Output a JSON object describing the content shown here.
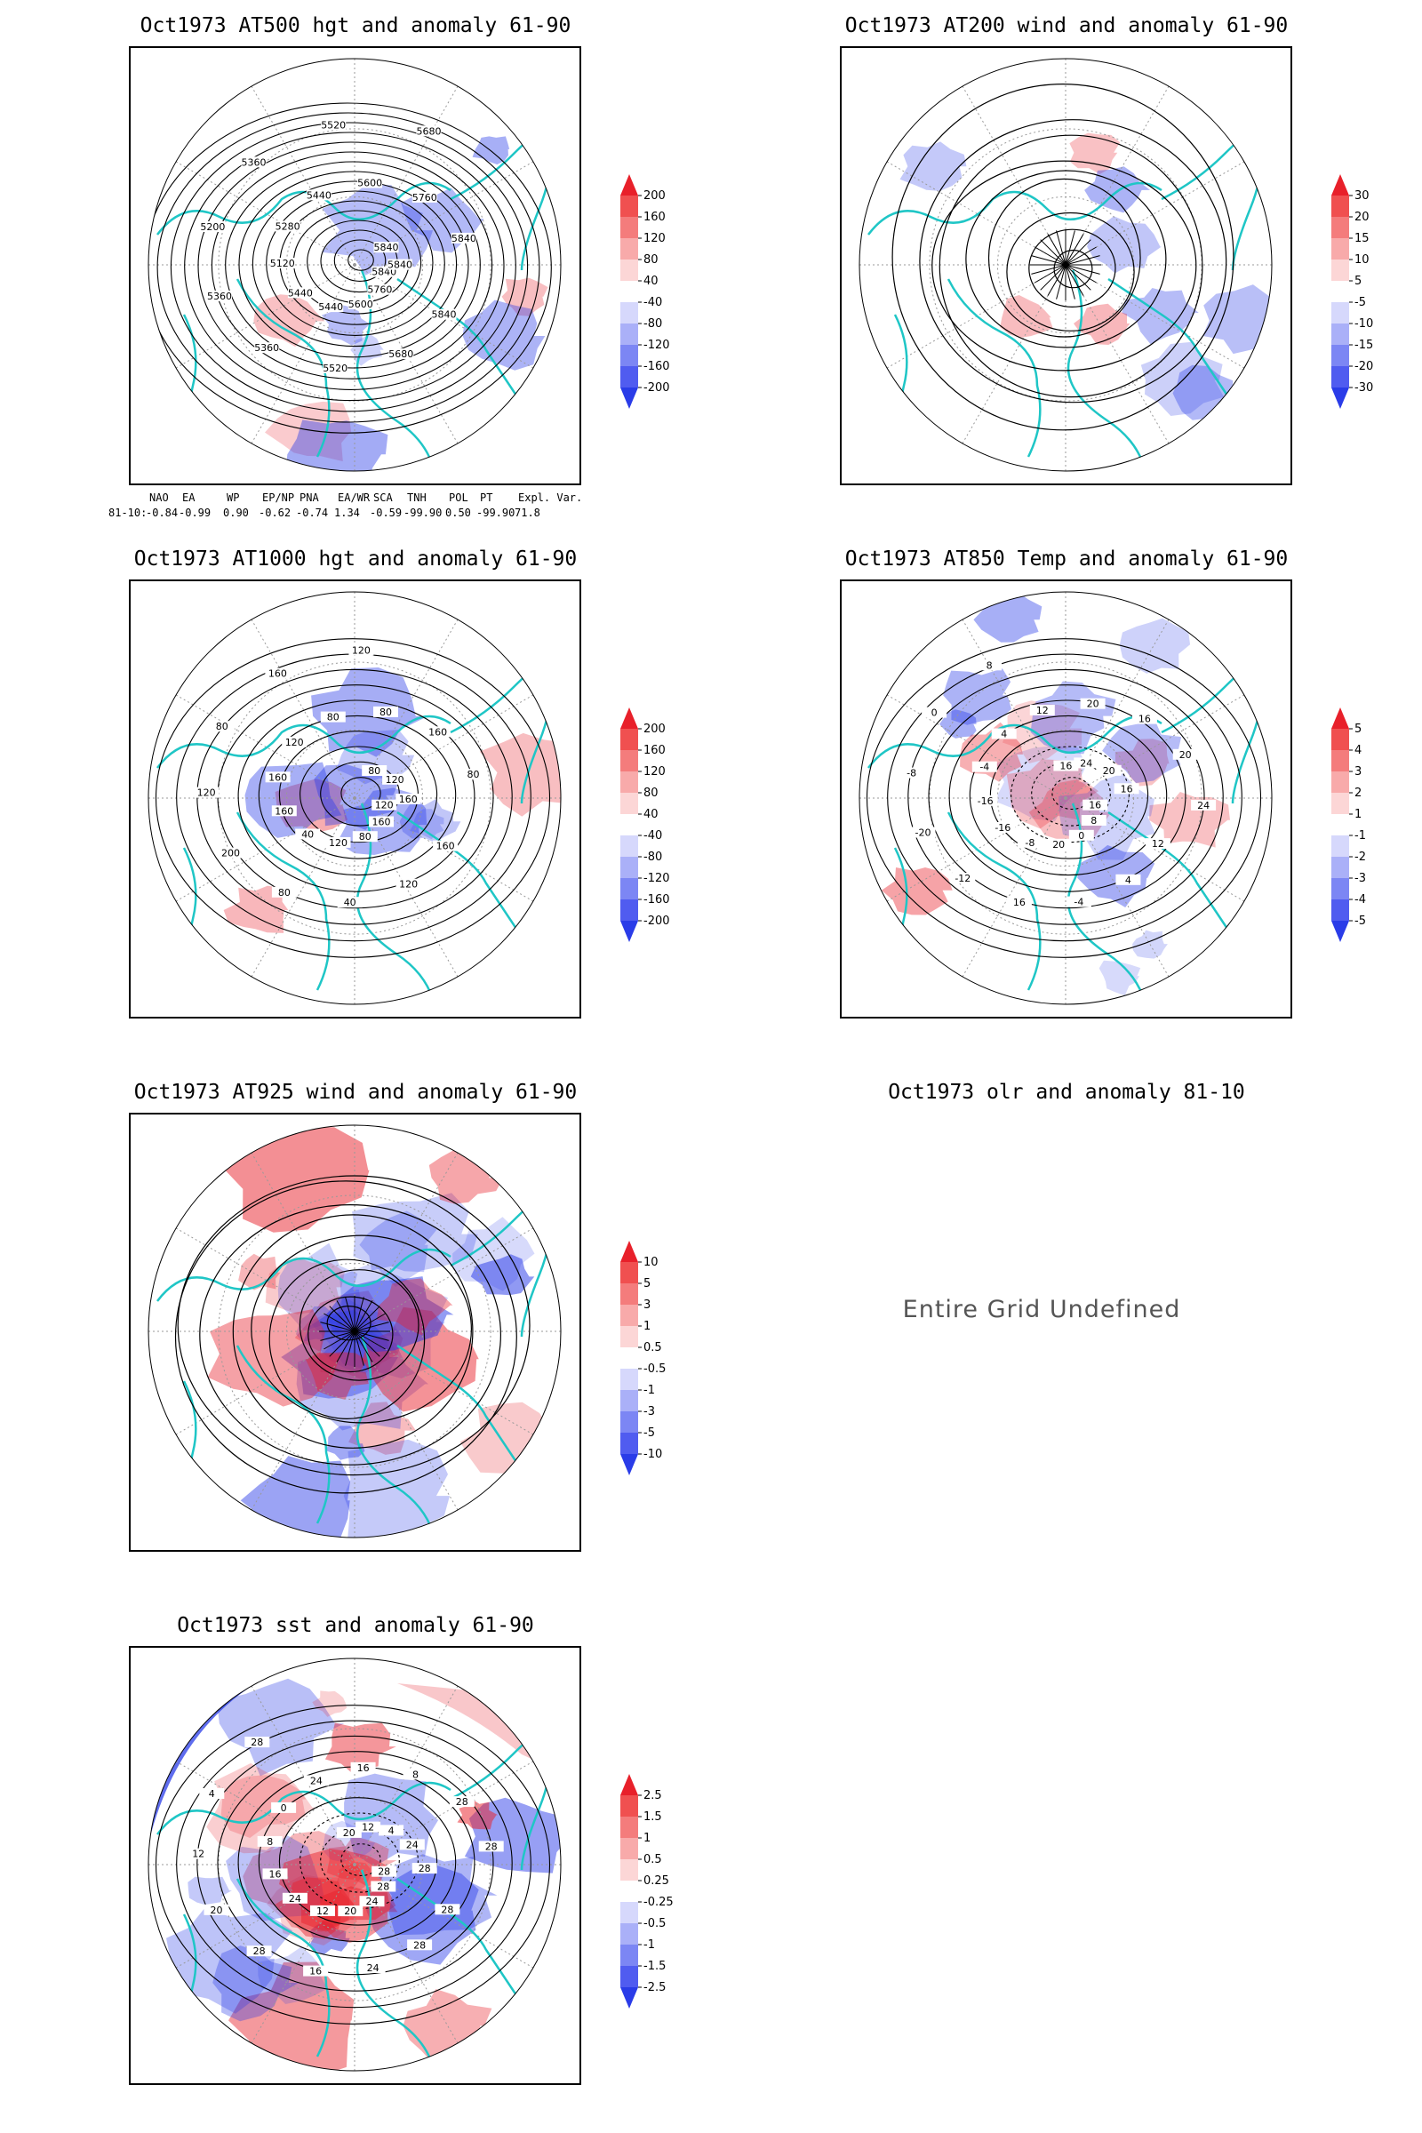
{
  "panels": [
    {
      "id": "p500",
      "title": "Oct1973 AT500 hgt and anomaly 61-90",
      "kind": "hgt",
      "contour_labels": [
        "5840",
        "5840",
        "5760",
        "5680",
        "5600",
        "5520",
        "5440",
        "5360",
        "5440",
        "5360",
        "5120",
        "5200",
        "5280",
        "5360",
        "5440",
        "5520",
        "5600",
        "5680",
        "5760",
        "5840",
        "5840",
        "5840"
      ],
      "colorbar": [
        "200",
        "160",
        "120",
        "80",
        "40",
        "-40",
        "-80",
        "-120",
        "-160",
        "-200"
      ]
    },
    {
      "id": "p200",
      "title": "Oct1973 AT200 wind and anomaly 61-90",
      "kind": "wind",
      "colorbar": [
        "30",
        "20",
        "15",
        "10",
        "5",
        "-5",
        "-10",
        "-15",
        "-20",
        "-30"
      ]
    },
    {
      "id": "p1000",
      "title": "Oct1973 AT1000 hgt and anomaly 61-90",
      "kind": "hgt",
      "contour_labels": [
        "120",
        "160",
        "160",
        "120",
        "80",
        "40",
        "120",
        "80",
        "40",
        "200",
        "160",
        "120",
        "160",
        "80",
        "120",
        "160",
        "80",
        "120",
        "80",
        "80",
        "160",
        "120",
        "80",
        "160"
      ],
      "colorbar": [
        "200",
        "160",
        "120",
        "80",
        "40",
        "-40",
        "-80",
        "-120",
        "-160",
        "-200"
      ]
    },
    {
      "id": "p850",
      "title": "Oct1973 AT850 Temp and anomaly 61-90",
      "kind": "temp",
      "contour_labels": [
        "16",
        "12",
        "8",
        "4",
        "0",
        "-4",
        "20",
        "16",
        "-8",
        "-12",
        "-16",
        "-20",
        "-16",
        "-8",
        "-4",
        "0",
        "4",
        "8",
        "12",
        "16",
        "20",
        "24",
        "16",
        "20",
        "20",
        "16",
        "24"
      ],
      "colorbar": [
        "5",
        "4",
        "3",
        "2",
        "1",
        "-1",
        "-2",
        "-3",
        "-4",
        "-5"
      ]
    },
    {
      "id": "p925",
      "title": "Oct1973 AT925 wind and anomaly 61-90",
      "kind": "wind",
      "colorbar": [
        "10",
        "5",
        "3",
        "1",
        "0.5",
        "-0.5",
        "-1",
        "-3",
        "-5",
        "-10"
      ]
    },
    {
      "id": "polr",
      "title": "Oct1973 olr and anomaly 81-10",
      "kind": "undefined",
      "message": "Entire Grid Undefined"
    },
    {
      "id": "psst",
      "title": "Oct1973 sst and anomaly 61-90",
      "kind": "sst",
      "contour_labels": [
        "28",
        "28",
        "28",
        "28",
        "24",
        "24",
        "20",
        "16",
        "12",
        "28",
        "24",
        "20",
        "16",
        "12",
        "8",
        "4",
        "0",
        "28",
        "24",
        "20",
        "16",
        "12",
        "8",
        "4",
        "28",
        "24",
        "28",
        "28"
      ],
      "colorbar": [
        "2.5",
        "1.5",
        "1",
        "0.5",
        "0.25",
        "-0.25",
        "-0.5",
        "-1",
        "-1.5",
        "-2.5"
      ]
    }
  ],
  "teleconnection": {
    "headers": [
      "NAO",
      "EA",
      "WP",
      "EP/NP",
      "PNA",
      "EA/WR",
      "SCA",
      "TNH",
      "POL",
      "PT",
      "Expl. Var."
    ],
    "row_label": "81-10:",
    "values": [
      "-0.84",
      "-0.99",
      "0.90",
      "-0.62",
      "-0.74",
      "1.34",
      "-0.59",
      "-99.90",
      "0.50",
      "-99.90",
      "71.8"
    ]
  },
  "colors": {
    "coast": "#1fc6c6",
    "red": "#e8202a",
    "blue": "#2a3ce8",
    "contour": "#000000"
  }
}
